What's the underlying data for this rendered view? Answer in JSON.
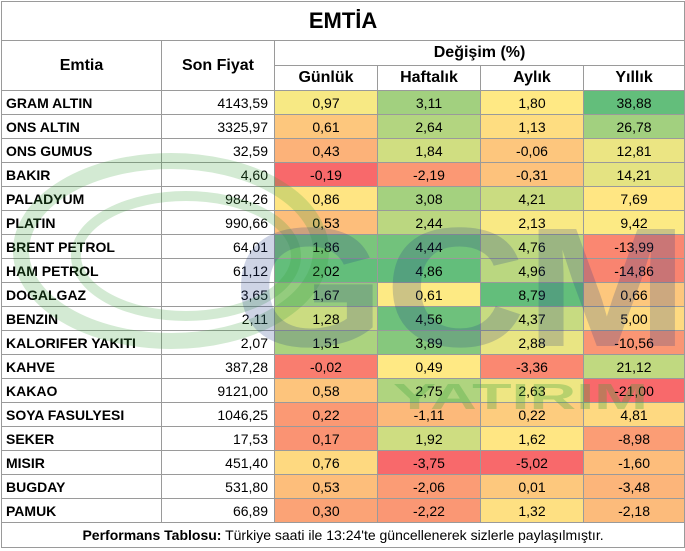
{
  "title": "EMTİA",
  "headers": {
    "commodity": "Emtia",
    "last_price": "Son Fiyat",
    "change": "Değişim (%)",
    "daily": "Günlük",
    "weekly": "Haftalık",
    "monthly": "Aylık",
    "yearly": "Yıllık"
  },
  "rows": [
    {
      "name": "GRAM ALTIN",
      "price": "4143,59",
      "d": "0,97",
      "w": "3,11",
      "m": "1,80",
      "y": "38,88"
    },
    {
      "name": "ONS ALTIN",
      "price": "3325,97",
      "d": "0,61",
      "w": "2,64",
      "m": "1,13",
      "y": "26,78"
    },
    {
      "name": "ONS GUMUS",
      "price": "32,59",
      "d": "0,43",
      "w": "1,84",
      "m": "-0,06",
      "y": "12,81"
    },
    {
      "name": "BAKIR",
      "price": "4,60",
      "d": "-0,19",
      "w": "-2,19",
      "m": "-0,31",
      "y": "14,21"
    },
    {
      "name": "PALADYUM",
      "price": "984,26",
      "d": "0,86",
      "w": "3,08",
      "m": "4,21",
      "y": "7,69"
    },
    {
      "name": "PLATIN",
      "price": "990,66",
      "d": "0,53",
      "w": "2,44",
      "m": "2,13",
      "y": "9,42"
    },
    {
      "name": "BRENT PETROL",
      "price": "64,01",
      "d": "1,86",
      "w": "4,44",
      "m": "4,76",
      "y": "-13,99"
    },
    {
      "name": "HAM PETROL",
      "price": "61,12",
      "d": "2,02",
      "w": "4,86",
      "m": "4,96",
      "y": "-14,86"
    },
    {
      "name": "DOGALGAZ",
      "price": "3,65",
      "d": "1,67",
      "w": "0,61",
      "m": "8,79",
      "y": "0,66"
    },
    {
      "name": "BENZIN",
      "price": "2,11",
      "d": "1,28",
      "w": "4,56",
      "m": "4,37",
      "y": "5,00"
    },
    {
      "name": "KALORIFER YAKITI",
      "price": "2,07",
      "d": "1,51",
      "w": "3,89",
      "m": "2,88",
      "y": "-10,56"
    },
    {
      "name": "KAHVE",
      "price": "387,28",
      "d": "-0,02",
      "w": "0,49",
      "m": "-3,36",
      "y": "21,12"
    },
    {
      "name": "KAKAO",
      "price": "9121,00",
      "d": "0,58",
      "w": "2,75",
      "m": "2,63",
      "y": "-21,00"
    },
    {
      "name": "SOYA FASULYESI",
      "price": "1046,25",
      "d": "0,22",
      "w": "-1,11",
      "m": "0,22",
      "y": "4,81"
    },
    {
      "name": "SEKER",
      "price": "17,53",
      "d": "0,17",
      "w": "1,92",
      "m": "1,62",
      "y": "-8,98"
    },
    {
      "name": "MISIR",
      "price": "451,40",
      "d": "0,76",
      "w": "-3,75",
      "m": "-5,02",
      "y": "-1,60"
    },
    {
      "name": "BUGDAY",
      "price": "531,80",
      "d": "0,53",
      "w": "-2,06",
      "m": "0,01",
      "y": "-3,48"
    },
    {
      "name": "PAMUK",
      "price": "66,89",
      "d": "0,30",
      "w": "-2,22",
      "m": "1,32",
      "y": "-2,18"
    }
  ],
  "footer": {
    "label": "Performans Tablosu:",
    "text": " Türkiye saati ile 13:24'te güncellenerek sizlerle paylaşılmıştır."
  },
  "watermark": {
    "logo_text": "GCM",
    "sub_text": "YATIRIM",
    "color_green": "#3aa13a",
    "color_blue": "#1f3c88"
  }
}
